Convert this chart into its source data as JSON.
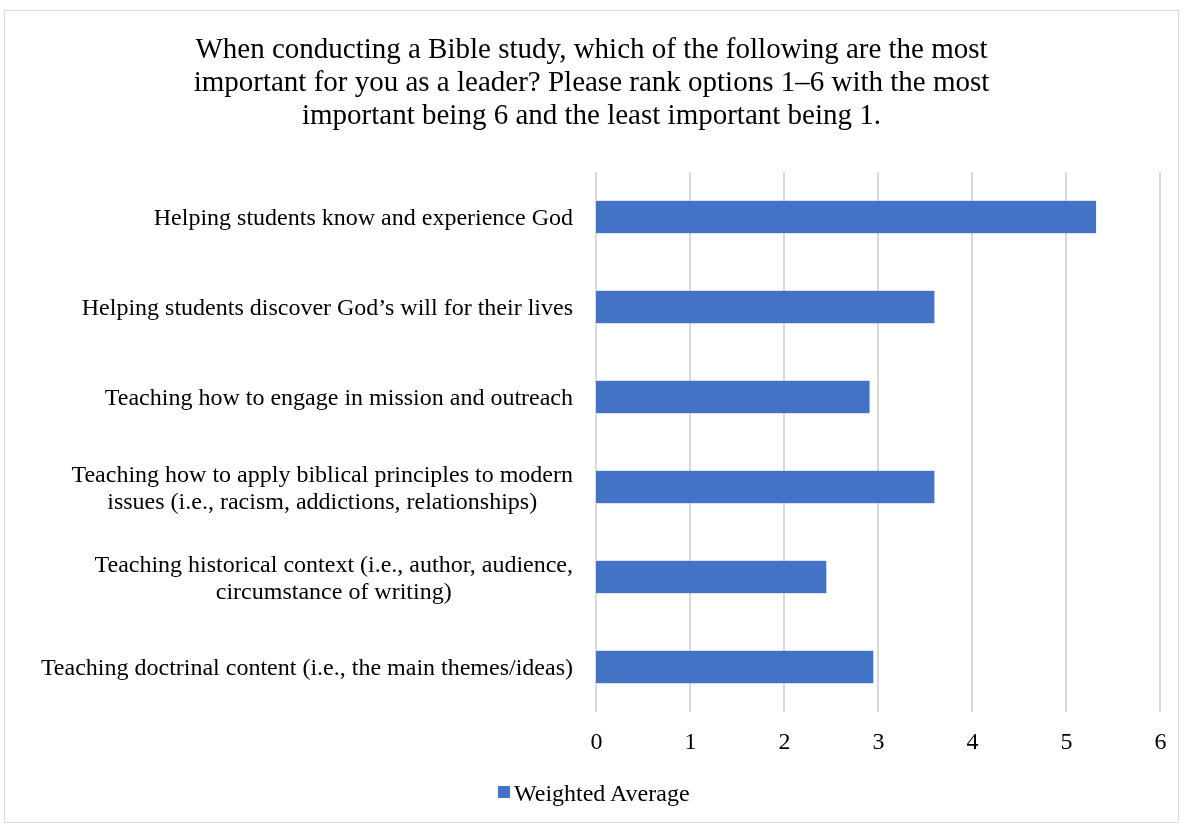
{
  "chart_data": {
    "type": "bar",
    "orientation": "horizontal",
    "title": "When conducting a Bible study, which of the following are the most important for you as a leader? Please rank options 1–6 with the most important being 6 and the least important being 1.",
    "categories": [
      "Helping students know and experience God",
      "Helping students discover God’s will for their lives",
      "Teaching how to engage in mission and outreach",
      "Teaching how to apply biblical principles to modern issues (i.e., racism, addictions, relationships)",
      "Teaching historical context (i.e., author, audience, circumstance of writing)",
      "Teaching doctrinal content (i.e., the main themes/ideas)"
    ],
    "series": [
      {
        "name": "Weighted Average",
        "color": "#4472c4",
        "values": [
          5.32,
          3.6,
          2.91,
          3.6,
          2.45,
          2.95
        ]
      }
    ],
    "xlim": [
      0,
      6
    ],
    "xticks": [
      0,
      1,
      2,
      3,
      4,
      5,
      6
    ],
    "grid": "x",
    "legend": "bottom"
  }
}
